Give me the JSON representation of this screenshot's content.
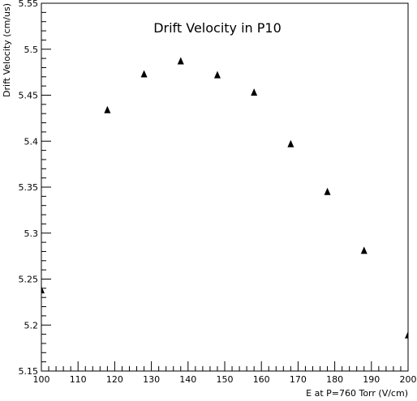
{
  "chart_data": {
    "type": "scatter",
    "title": "Drift Velocity in P10",
    "xlabel": "E at P=760 Torr (V/cm)",
    "ylabel": "Drift Velocity (cm/us)",
    "xlim": [
      100,
      200
    ],
    "ylim": [
      5.15,
      5.55
    ],
    "x_ticks": [
      "100",
      "110",
      "120",
      "130",
      "140",
      "150",
      "160",
      "170",
      "180",
      "190",
      "200"
    ],
    "y_ticks": [
      "5.15",
      "5.2",
      "5.25",
      "5.3",
      "5.35",
      "5.4",
      "5.45",
      "5.5",
      "5.55"
    ],
    "grid": false,
    "legend": "none",
    "marker": "triangle",
    "marker_color": "#000000",
    "series": [
      {
        "x": [
          100,
          118,
          128,
          138,
          148,
          158,
          168,
          178,
          188,
          200
        ],
        "y": [
          5.238,
          5.434,
          5.473,
          5.487,
          5.472,
          5.453,
          5.397,
          5.345,
          5.281,
          5.189
        ]
      }
    ]
  }
}
